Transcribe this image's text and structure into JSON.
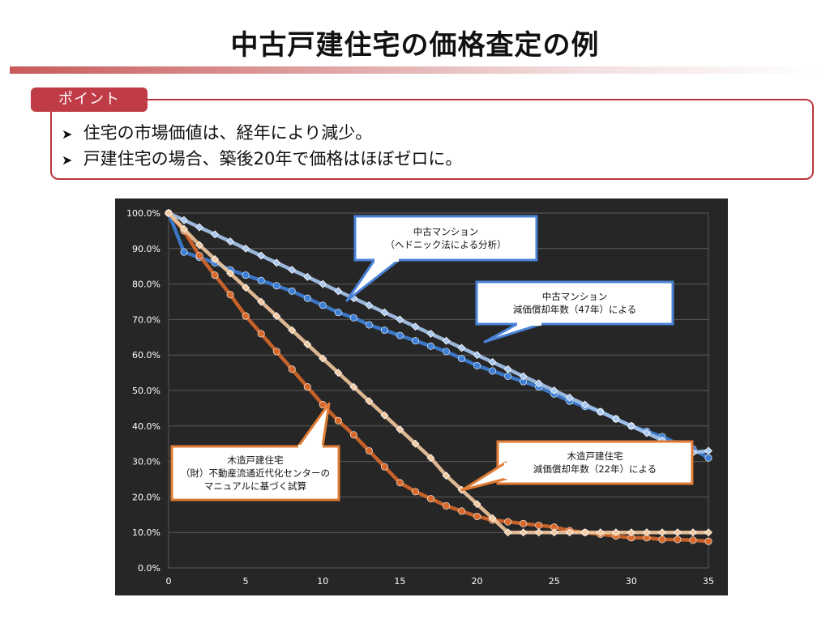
{
  "slide": {
    "title": "中古戸建住宅の価格査定の例",
    "point_label": "ポイント",
    "bullets": [
      "住宅の市場価値は、経年により減少。",
      "戸建住宅の場合、築後20年で価格はほぼゼロに。"
    ]
  },
  "colors": {
    "blue_dark": "#3d7fd6",
    "blue_light": "#a9c8f0",
    "orange_dark": "#d8692a",
    "orange_light": "#f3c9a0",
    "callout_blue_border": "#4a82d6",
    "callout_orange_border": "#e07b34"
  },
  "chart_data": {
    "type": "line",
    "xlim": [
      0,
      35
    ],
    "ylim": [
      0,
      100
    ],
    "x_ticks": [
      "0",
      "5",
      "10",
      "15",
      "20",
      "25",
      "30",
      "35"
    ],
    "y_ticks": [
      "0.0%",
      "10.0%",
      "20.0%",
      "30.0%",
      "40.0%",
      "50.0%",
      "60.0%",
      "70.0%",
      "80.0%",
      "90.0%",
      "100.0%"
    ],
    "grid": true,
    "x": [
      0,
      1,
      2,
      3,
      4,
      5,
      6,
      7,
      8,
      9,
      10,
      11,
      12,
      13,
      14,
      15,
      16,
      17,
      18,
      19,
      20,
      21,
      22,
      23,
      24,
      25,
      26,
      27,
      28,
      29,
      30,
      31,
      32,
      33,
      34,
      35
    ],
    "series": [
      {
        "key": "mansion_hedonic",
        "color": "#3d7fd6",
        "marker": "circle",
        "values": [
          100,
          89,
          87.5,
          86,
          84,
          82.5,
          81,
          79.5,
          78,
          76,
          74,
          72,
          70.5,
          68.5,
          67,
          65.5,
          64,
          62.5,
          61,
          59,
          57,
          55.5,
          54,
          52.5,
          51,
          49,
          47,
          45.5,
          44,
          42,
          40,
          38.5,
          37,
          35,
          33.5,
          31
        ]
      },
      {
        "key": "mansion_depr",
        "color": "#a9c8f0",
        "marker": "diamond",
        "values": [
          100,
          98,
          96,
          94,
          92,
          90,
          88,
          86,
          84,
          82,
          80,
          78,
          76,
          74,
          72,
          70,
          68,
          66,
          64,
          62,
          60,
          58,
          56,
          54,
          52,
          50,
          48,
          46,
          44,
          42,
          40,
          38,
          36,
          34,
          32.5,
          33
        ]
      },
      {
        "key": "house_manual",
        "color": "#d8692a",
        "marker": "circle",
        "values": [
          100,
          95,
          88,
          82.5,
          77,
          71,
          66,
          61,
          56,
          51,
          46,
          41.5,
          37.5,
          33,
          28.5,
          24,
          21.5,
          19.5,
          17.5,
          16,
          14.5,
          13.5,
          13,
          12.5,
          12,
          11.5,
          10.5,
          10,
          9.5,
          9,
          8.5,
          8.5,
          8,
          8,
          7.8,
          7.5
        ]
      },
      {
        "key": "house_depr",
        "color": "#f3c9a0",
        "marker": "diamond",
        "values": [
          100,
          95.5,
          91,
          87,
          83,
          79,
          75,
          71,
          67,
          63,
          59,
          55,
          51,
          47,
          43,
          39,
          35,
          31,
          26,
          22,
          18,
          14,
          10,
          10,
          10,
          10,
          10,
          10,
          10,
          10,
          10,
          10,
          10,
          10,
          10,
          10
        ]
      }
    ],
    "callouts": [
      {
        "text_lines": [
          "中古マンション",
          "（ヘドニック法による分析）"
        ]
      },
      {
        "text_lines": [
          "中古マンション",
          "減価償却年数（47年）による"
        ]
      },
      {
        "text_lines": [
          "木造戸建住宅",
          "（財）不動産流通近代化センターの",
          "マニュアルに基づく試算"
        ]
      },
      {
        "text_lines": [
          "木造戸建住宅",
          "減価償却年数（22年）による"
        ]
      }
    ]
  }
}
